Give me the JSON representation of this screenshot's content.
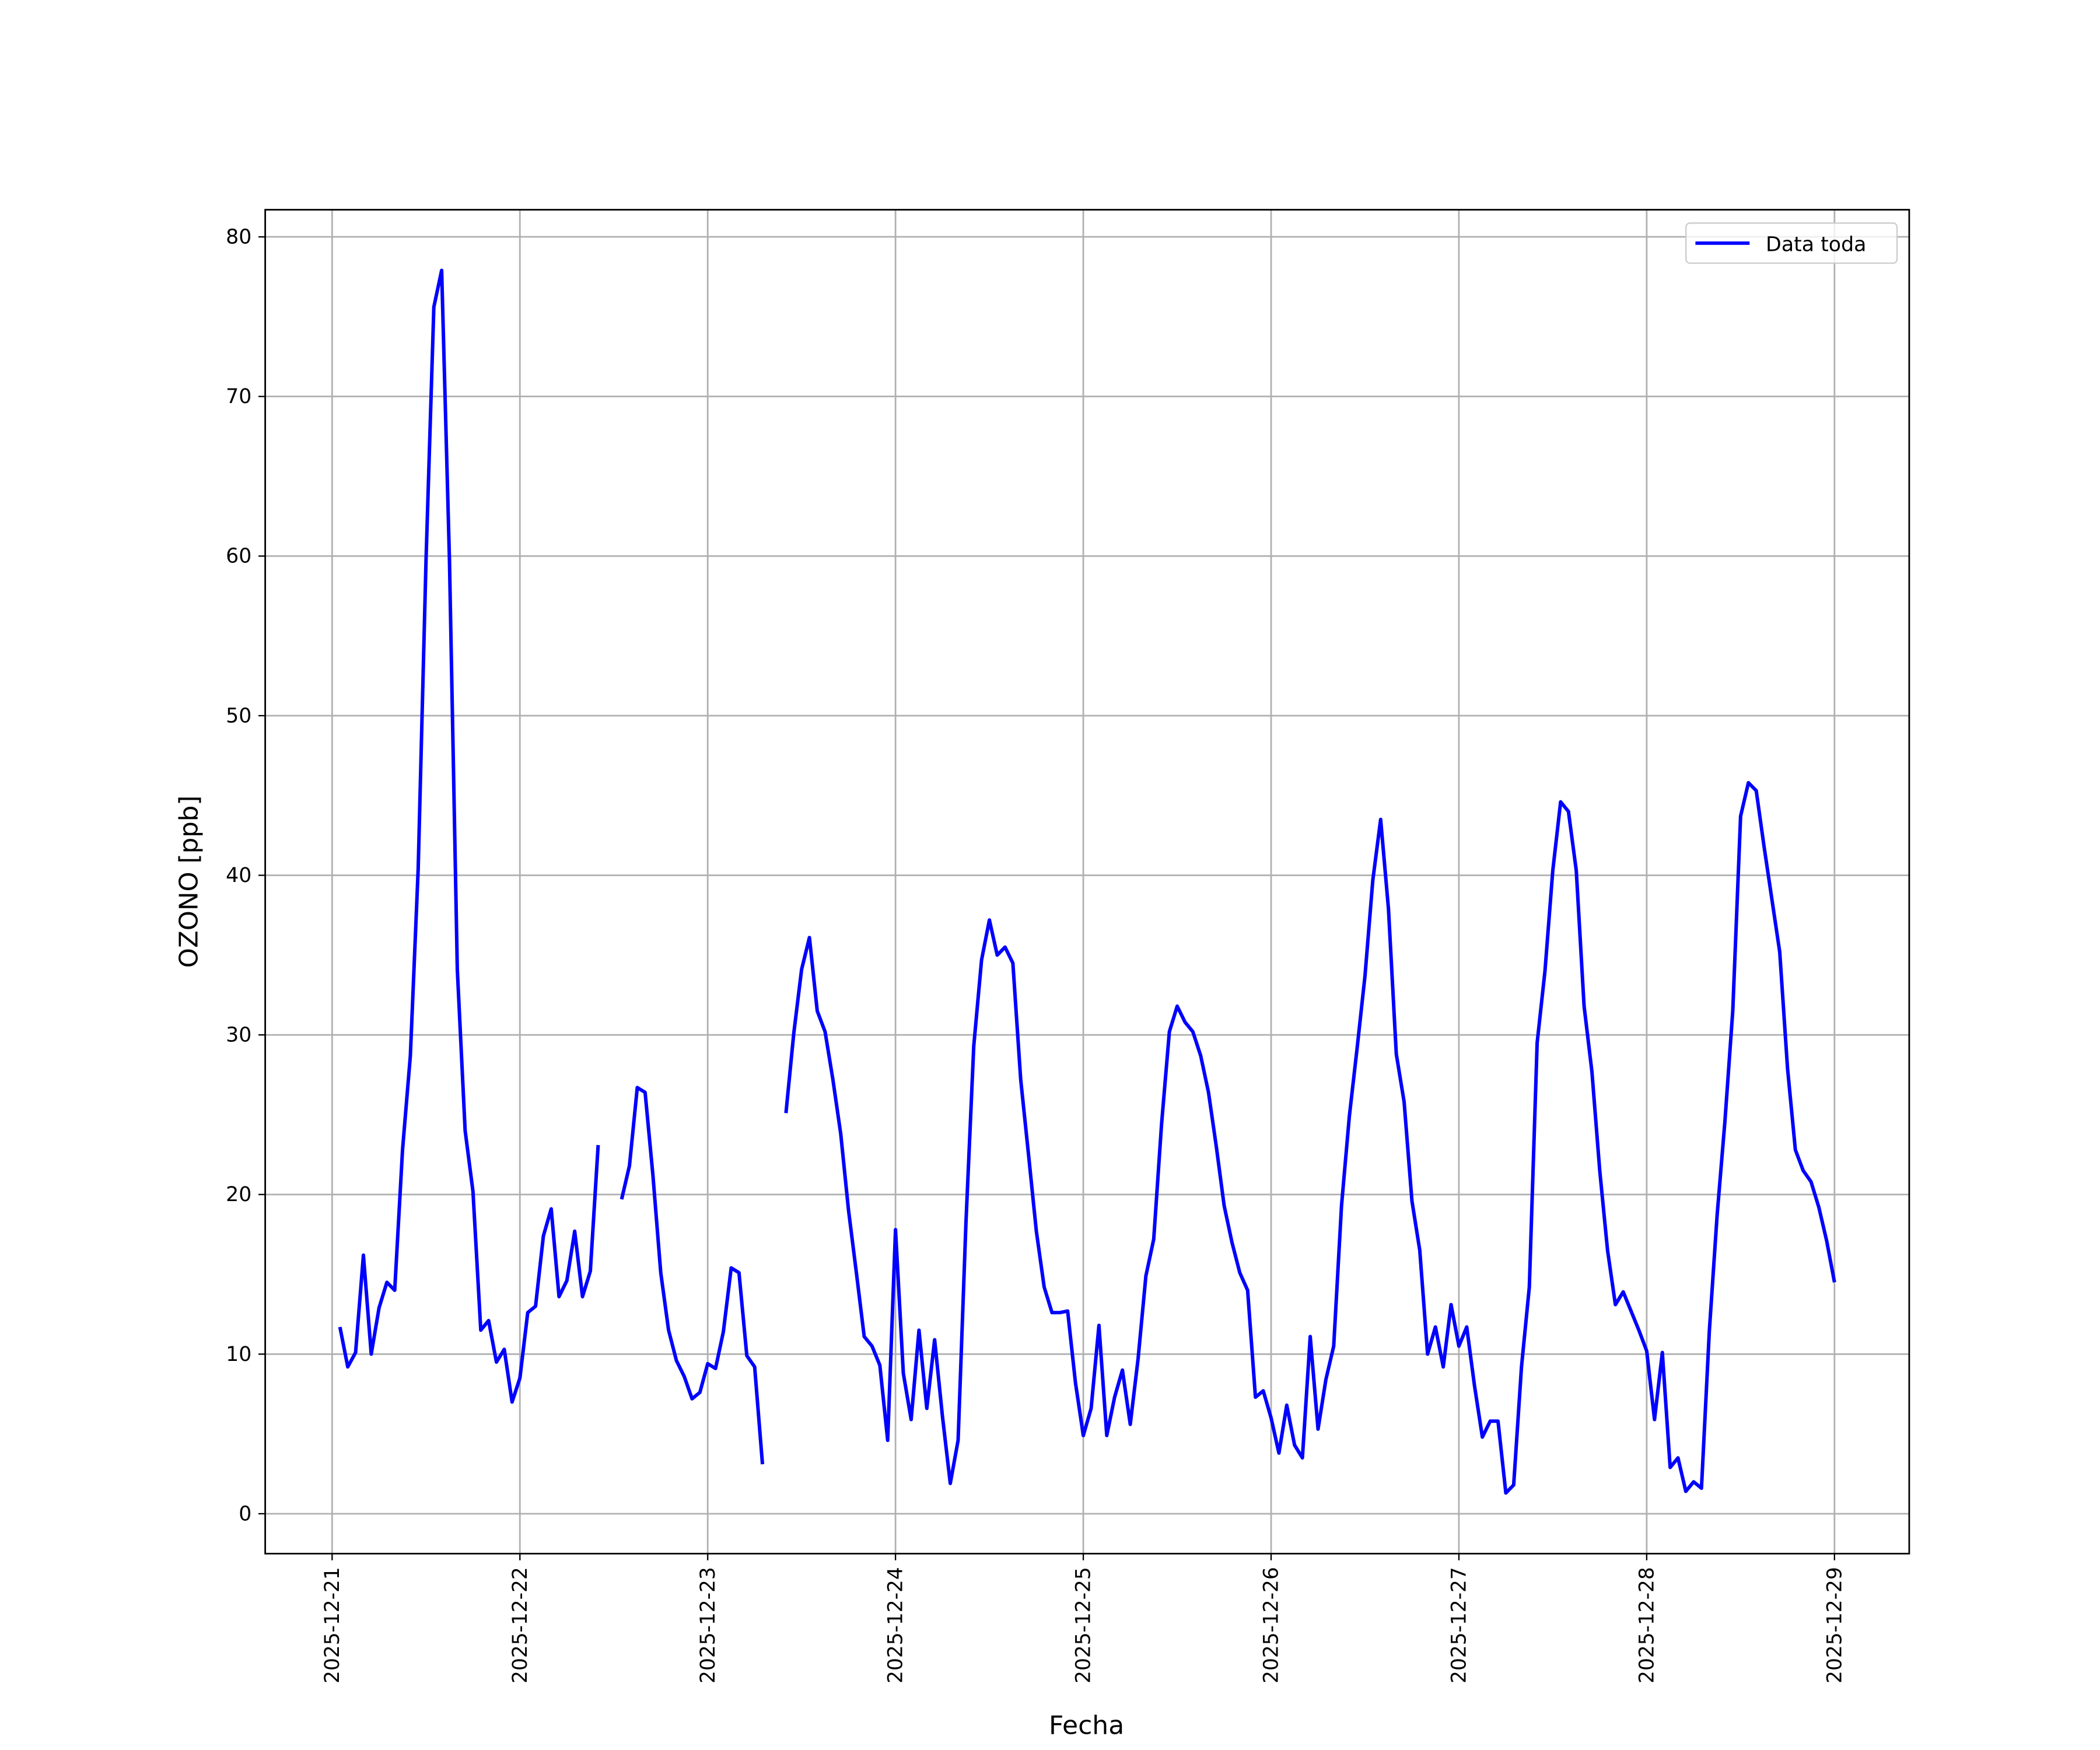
{
  "chart_data": {
    "type": "line",
    "x_label": "Fecha",
    "y_label": "OZONO [ppb]",
    "x": [
      "2025-12-21T01:00",
      "2025-12-21T02:00",
      "2025-12-21T03:00",
      "2025-12-21T04:00",
      "2025-12-21T05:00",
      "2025-12-21T06:00",
      "2025-12-21T07:00",
      "2025-12-21T08:00",
      "2025-12-21T09:00",
      "2025-12-21T10:00",
      "2025-12-21T11:00",
      "2025-12-21T12:00",
      "2025-12-21T13:00",
      "2025-12-21T14:00",
      "2025-12-21T15:00",
      "2025-12-21T16:00",
      "2025-12-21T17:00",
      "2025-12-21T18:00",
      "2025-12-21T19:00",
      "2025-12-21T20:00",
      "2025-12-21T21:00",
      "2025-12-21T22:00",
      "2025-12-21T23:00",
      "2025-12-22T00:00",
      "2025-12-22T01:00",
      "2025-12-22T02:00",
      "2025-12-22T03:00",
      "2025-12-22T04:00",
      "2025-12-22T05:00",
      "2025-12-22T06:00",
      "2025-12-22T07:00",
      "2025-12-22T08:00",
      "2025-12-22T09:00",
      "2025-12-22T10:00",
      "2025-12-22T11:00",
      "2025-12-22T12:00",
      "2025-12-22T13:00",
      "2025-12-22T14:00",
      "2025-12-22T15:00",
      "2025-12-22T16:00",
      "2025-12-22T17:00",
      "2025-12-22T18:00",
      "2025-12-22T19:00",
      "2025-12-22T20:00",
      "2025-12-22T21:00",
      "2025-12-22T22:00",
      "2025-12-22T23:00",
      "2025-12-23T00:00",
      "2025-12-23T01:00",
      "2025-12-23T02:00",
      "2025-12-23T03:00",
      "2025-12-23T04:00",
      "2025-12-23T05:00",
      "2025-12-23T06:00",
      "2025-12-23T07:00",
      "2025-12-23T08:00",
      "2025-12-23T09:00",
      "2025-12-23T10:00",
      "2025-12-23T11:00",
      "2025-12-23T12:00",
      "2025-12-23T13:00",
      "2025-12-23T14:00",
      "2025-12-23T15:00",
      "2025-12-23T16:00",
      "2025-12-23T17:00",
      "2025-12-23T18:00",
      "2025-12-23T19:00",
      "2025-12-23T20:00",
      "2025-12-23T21:00",
      "2025-12-23T22:00",
      "2025-12-23T23:00",
      "2025-12-24T00:00",
      "2025-12-24T01:00",
      "2025-12-24T02:00",
      "2025-12-24T03:00",
      "2025-12-24T04:00",
      "2025-12-24T05:00",
      "2025-12-24T06:00",
      "2025-12-24T07:00",
      "2025-12-24T08:00",
      "2025-12-24T09:00",
      "2025-12-24T10:00",
      "2025-12-24T11:00",
      "2025-12-24T12:00",
      "2025-12-24T13:00",
      "2025-12-24T14:00",
      "2025-12-24T15:00",
      "2025-12-24T16:00",
      "2025-12-24T17:00",
      "2025-12-24T18:00",
      "2025-12-24T19:00",
      "2025-12-24T20:00",
      "2025-12-24T21:00",
      "2025-12-24T22:00",
      "2025-12-24T23:00",
      "2025-12-25T00:00",
      "2025-12-25T01:00",
      "2025-12-25T02:00",
      "2025-12-25T03:00",
      "2025-12-25T04:00",
      "2025-12-25T05:00",
      "2025-12-25T06:00",
      "2025-12-25T07:00",
      "2025-12-25T08:00",
      "2025-12-25T09:00",
      "2025-12-25T10:00",
      "2025-12-25T11:00",
      "2025-12-25T12:00",
      "2025-12-25T13:00",
      "2025-12-25T14:00",
      "2025-12-25T15:00",
      "2025-12-25T16:00",
      "2025-12-25T17:00",
      "2025-12-25T18:00",
      "2025-12-25T19:00",
      "2025-12-25T20:00",
      "2025-12-25T21:00",
      "2025-12-25T22:00",
      "2025-12-25T23:00",
      "2025-12-26T00:00",
      "2025-12-26T01:00",
      "2025-12-26T02:00",
      "2025-12-26T03:00",
      "2025-12-26T04:00",
      "2025-12-26T05:00",
      "2025-12-26T06:00",
      "2025-12-26T07:00",
      "2025-12-26T08:00",
      "2025-12-26T09:00",
      "2025-12-26T10:00",
      "2025-12-26T11:00",
      "2025-12-26T12:00",
      "2025-12-26T13:00",
      "2025-12-26T14:00",
      "2025-12-26T15:00",
      "2025-12-26T16:00",
      "2025-12-26T17:00",
      "2025-12-26T18:00",
      "2025-12-26T19:00",
      "2025-12-26T20:00",
      "2025-12-26T21:00",
      "2025-12-26T22:00",
      "2025-12-26T23:00",
      "2025-12-27T00:00",
      "2025-12-27T01:00",
      "2025-12-27T02:00",
      "2025-12-27T03:00",
      "2025-12-27T04:00",
      "2025-12-27T05:00",
      "2025-12-27T06:00",
      "2025-12-27T07:00",
      "2025-12-27T08:00",
      "2025-12-27T09:00",
      "2025-12-27T10:00",
      "2025-12-27T11:00",
      "2025-12-27T12:00",
      "2025-12-27T13:00",
      "2025-12-27T14:00",
      "2025-12-27T15:00",
      "2025-12-27T16:00",
      "2025-12-27T17:00",
      "2025-12-27T18:00",
      "2025-12-27T19:00",
      "2025-12-27T20:00",
      "2025-12-27T21:00",
      "2025-12-27T22:00",
      "2025-12-27T23:00",
      "2025-12-28T00:00",
      "2025-12-28T01:00",
      "2025-12-28T02:00",
      "2025-12-28T03:00",
      "2025-12-28T04:00",
      "2025-12-28T05:00",
      "2025-12-28T06:00",
      "2025-12-28T07:00",
      "2025-12-28T08:00",
      "2025-12-28T09:00",
      "2025-12-28T10:00",
      "2025-12-28T11:00",
      "2025-12-28T12:00",
      "2025-12-28T13:00",
      "2025-12-28T14:00",
      "2025-12-28T15:00",
      "2025-12-28T16:00",
      "2025-12-28T17:00",
      "2025-12-28T18:00",
      "2025-12-28T19:00",
      "2025-12-28T20:00",
      "2025-12-28T21:00",
      "2025-12-28T22:00",
      "2025-12-28T23:00",
      "2025-12-29T00:00"
    ],
    "series": [
      {
        "name": "Data toda",
        "color": "#0000ff",
        "values": [
          11.7,
          9.2,
          10.1,
          16.2,
          10.0,
          12.9,
          14.5,
          14.0,
          22.8,
          28.7,
          40.4,
          59.7,
          75.6,
          77.9,
          59.7,
          34.1,
          24.0,
          20.2,
          11.5,
          12.1,
          9.5,
          10.3,
          7.0,
          8.5,
          12.6,
          13.0,
          17.4,
          19.1,
          13.6,
          14.6,
          17.7,
          13.6,
          15.2,
          23.1,
          null,
          null,
          19.7,
          21.8,
          26.7,
          26.4,
          21.2,
          15.1,
          11.5,
          9.6,
          8.6,
          7.2,
          7.6,
          9.4,
          9.1,
          11.4,
          15.4,
          15.1,
          9.9,
          9.2,
          3.1,
          null,
          null,
          25.1,
          30.1,
          34.1,
          36.1,
          31.5,
          30.2,
          27.2,
          23.8,
          19.0,
          15.1,
          11.1,
          10.5,
          9.3,
          4.6,
          17.8,
          8.8,
          5.9,
          11.5,
          6.6,
          10.9,
          6.1,
          1.9,
          4.6,
          18.2,
          29.3,
          34.7,
          37.2,
          35.0,
          35.5,
          34.5,
          27.2,
          22.5,
          17.7,
          14.2,
          12.6,
          12.6,
          12.7,
          8.2,
          4.9,
          6.6,
          11.8,
          4.9,
          7.3,
          9.0,
          5.6,
          9.7,
          14.9,
          17.2,
          24.4,
          30.2,
          31.8,
          30.8,
          30.2,
          28.7,
          26.4,
          23.0,
          19.3,
          17.0,
          15.1,
          14.0,
          7.3,
          7.7,
          6.0,
          3.8,
          6.8,
          4.3,
          3.5,
          11.1,
          5.3,
          8.4,
          10.5,
          19.3,
          24.9,
          29.2,
          33.7,
          39.7,
          43.5,
          37.9,
          28.8,
          25.8,
          19.6,
          16.5,
          10.0,
          11.7,
          9.2,
          13.1,
          10.5,
          11.7,
          8.0,
          4.8,
          5.8,
          5.8,
          1.3,
          1.8,
          9.2,
          14.2,
          29.5,
          34.0,
          40.3,
          44.6,
          44.0,
          40.3,
          31.8,
          27.7,
          21.5,
          16.5,
          13.1,
          13.9,
          12.7,
          11.5,
          10.2,
          5.9,
          10.1,
          2.9,
          3.5,
          1.4,
          2.0,
          1.6,
          11.4,
          18.7,
          24.6,
          31.5,
          43.7,
          45.8,
          45.3,
          41.8,
          38.5,
          35.2,
          27.9,
          22.8,
          21.5,
          20.8,
          19.2,
          17.1,
          14.5
        ]
      }
    ],
    "xlim": [
      "2025-12-20T15:27",
      "2025-12-29T09:33"
    ],
    "xticks": [
      "2025-12-21",
      "2025-12-22",
      "2025-12-23",
      "2025-12-24",
      "2025-12-25",
      "2025-12-26",
      "2025-12-27",
      "2025-12-28",
      "2025-12-29"
    ],
    "ylim": [
      -2.5,
      81.7
    ],
    "yticks": [
      0,
      10,
      20,
      30,
      40,
      50,
      60,
      70,
      80
    ],
    "grid": true,
    "legend": "upper right"
  }
}
